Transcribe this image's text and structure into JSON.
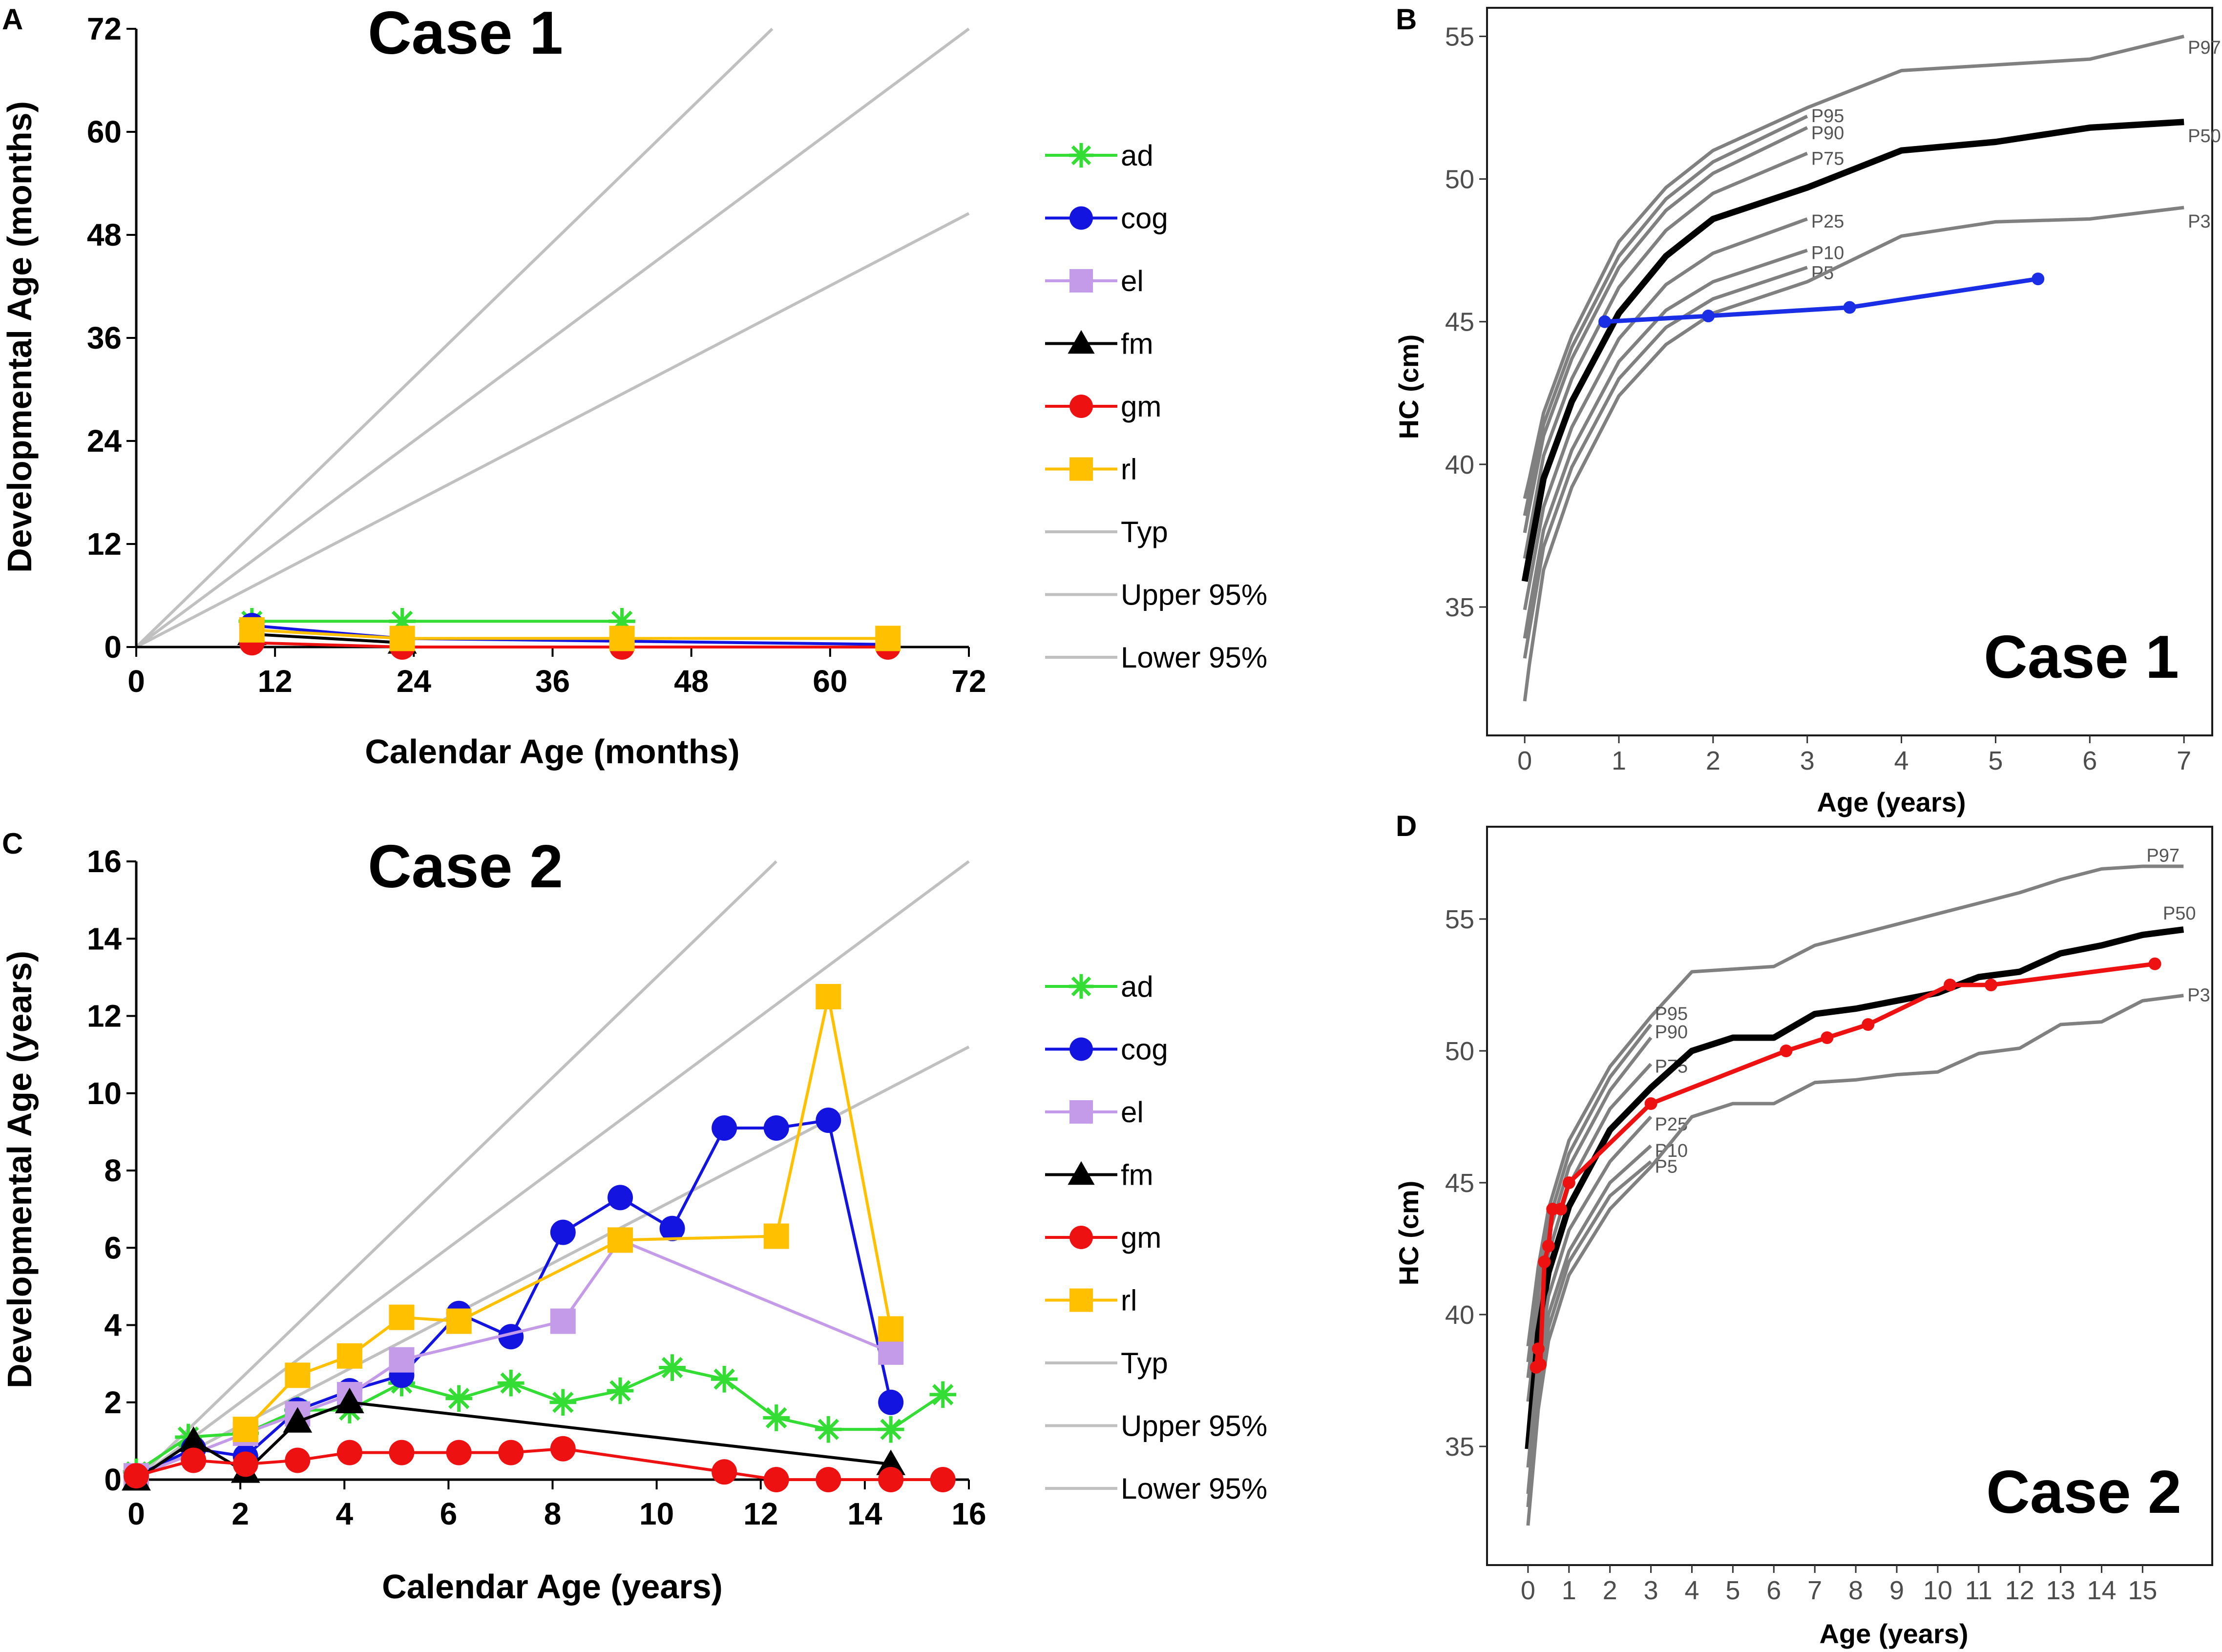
{
  "colors": {
    "ad": "#33dd33",
    "cog": "#1414e0",
    "el": "#c39be8",
    "fm": "#000000",
    "gm": "#ee1111",
    "rl": "#ffc000",
    "ref_line": "#c0c0c0",
    "pct_line": "#808080",
    "p50_line": "#000000",
    "hc_case1": "#1a2ee6",
    "hc_case2": "#ee1111"
  },
  "chart_data": [
    {
      "id": "A",
      "panel_letter": "A",
      "type": "line",
      "title": "Case 1",
      "xlabel": "Calendar Age (months)",
      "ylabel": "Developmental Age (months)",
      "xlim": [
        0,
        72
      ],
      "ylim": [
        0,
        72
      ],
      "xticks": [
        0,
        12,
        24,
        36,
        48,
        60,
        72
      ],
      "yticks": [
        0,
        12,
        24,
        36,
        48,
        60,
        72
      ],
      "reference_lines": [
        {
          "name": "Typ",
          "x": [
            0,
            72
          ],
          "y": [
            0,
            72
          ]
        },
        {
          "name": "Upper 95%",
          "x": [
            0,
            55
          ],
          "y": [
            0,
            72
          ]
        },
        {
          "name": "Lower 95%",
          "x": [
            0,
            72
          ],
          "y": [
            0,
            50.5
          ]
        }
      ],
      "series": [
        {
          "name": "ad",
          "marker": "star",
          "x": [
            10,
            23,
            42
          ],
          "y": [
            3,
            3,
            3
          ]
        },
        {
          "name": "cog",
          "marker": "circle",
          "x": [
            10,
            23,
            65
          ],
          "y": [
            2.5,
            1,
            0.3
          ]
        },
        {
          "name": "el",
          "marker": "square",
          "x": [],
          "y": []
        },
        {
          "name": "fm",
          "marker": "triangle",
          "x": [
            10,
            23
          ],
          "y": [
            1.5,
            0.5
          ]
        },
        {
          "name": "gm",
          "marker": "circle",
          "x": [
            10,
            23,
            42,
            65
          ],
          "y": [
            0.5,
            0,
            0,
            0
          ]
        },
        {
          "name": "rl",
          "marker": "square",
          "x": [
            10,
            23,
            42,
            65
          ],
          "y": [
            2,
            1,
            1,
            1
          ]
        }
      ],
      "legend": [
        "ad",
        "cog",
        "el",
        "fm",
        "gm",
        "rl",
        "Typ",
        "Upper 95%",
        "Lower 95%"
      ]
    },
    {
      "id": "B",
      "panel_letter": "B",
      "type": "line",
      "title": "Case 1",
      "xlabel": "Age (years)",
      "ylabel": "HC (cm)",
      "xlim": [
        -0.4,
        7.3
      ],
      "ylim": [
        30.5,
        56
      ],
      "xticks": [
        0,
        1,
        2,
        3,
        4,
        5,
        6,
        7
      ],
      "yticks": [
        35,
        40,
        45,
        50,
        55
      ],
      "percentile_curves": [
        {
          "label": "P97",
          "label_at": [
            7,
            54.6
          ],
          "x": [
            0,
            0.05,
            0.2,
            0.5,
            1,
            1.5,
            2,
            3,
            4,
            5,
            6,
            7
          ],
          "y": [
            38.8,
            39.5,
            41.8,
            44.5,
            47.8,
            49.7,
            51,
            52.5,
            53.8,
            54,
            54.2,
            55
          ]
        },
        {
          "label": "P95",
          "label_at": [
            3,
            52.2
          ],
          "x": [
            0,
            0.05,
            0.2,
            0.5,
            1,
            1.5,
            2,
            3
          ],
          "y": [
            38.2,
            39,
            41.4,
            44.1,
            47.3,
            49.3,
            50.6,
            52.2
          ]
        },
        {
          "label": "P90",
          "label_at": [
            3,
            51.6
          ],
          "x": [
            0,
            0.05,
            0.2,
            0.5,
            1,
            1.5,
            2,
            3
          ],
          "y": [
            37.6,
            38.5,
            41,
            43.7,
            46.9,
            48.9,
            50.2,
            51.8
          ]
        },
        {
          "label": "P75",
          "label_at": [
            3,
            50.7
          ],
          "x": [
            0,
            0.05,
            0.2,
            0.5,
            1,
            1.5,
            2,
            3
          ],
          "y": [
            36.7,
            37.6,
            40.3,
            43,
            46.2,
            48.2,
            49.5,
            50.9
          ]
        },
        {
          "label": "P50",
          "label_at": [
            7,
            51.5
          ],
          "x": [
            0,
            0.05,
            0.2,
            0.5,
            1,
            1.5,
            2,
            3,
            4,
            5,
            6,
            7
          ],
          "y": [
            35.9,
            36.8,
            39.5,
            42.2,
            45.3,
            47.3,
            48.6,
            49.7,
            51,
            51.3,
            51.8,
            52
          ]
        },
        {
          "label": "P25",
          "label_at": [
            3,
            48.5
          ],
          "x": [
            0,
            0.05,
            0.2,
            0.5,
            1,
            1.5,
            2,
            3
          ],
          "y": [
            34.9,
            35.8,
            38.5,
            41.3,
            44.4,
            46.3,
            47.4,
            48.6
          ]
        },
        {
          "label": "P10",
          "label_at": [
            3,
            47.4
          ],
          "x": [
            0,
            0.05,
            0.2,
            0.5,
            1,
            1.5,
            2,
            3
          ],
          "y": [
            33.9,
            34.9,
            37.7,
            40.5,
            43.6,
            45.4,
            46.4,
            47.5
          ]
        },
        {
          "label": "P5",
          "label_at": [
            3,
            46.7
          ],
          "x": [
            0,
            0.05,
            0.2,
            0.5,
            1,
            1.5,
            2,
            3
          ],
          "y": [
            33.2,
            34.2,
            37.1,
            39.9,
            43,
            44.8,
            45.8,
            46.9
          ]
        },
        {
          "label": "P3",
          "label_at": [
            7,
            48.5
          ],
          "x": [
            0,
            0.05,
            0.2,
            0.5,
            1,
            1.5,
            2,
            3,
            4,
            5,
            6,
            7
          ],
          "y": [
            31.7,
            33,
            36.3,
            39.2,
            42.4,
            44.2,
            45.3,
            46.4,
            48,
            48.5,
            48.6,
            49
          ]
        }
      ],
      "series": [
        {
          "name": "HC",
          "x": [
            0.85,
            1.95,
            3.45,
            5.45
          ],
          "y": [
            45,
            45.2,
            45.5,
            46.5
          ]
        }
      ]
    },
    {
      "id": "C",
      "panel_letter": "C",
      "type": "line",
      "title": "Case 2",
      "xlabel": "Calendar Age (years)",
      "ylabel": "Developmental Age (years)",
      "xlim": [
        0,
        16
      ],
      "ylim": [
        0,
        16
      ],
      "xticks": [
        0,
        2,
        4,
        6,
        8,
        10,
        12,
        14,
        16
      ],
      "yticks": [
        0,
        2,
        4,
        6,
        8,
        10,
        12,
        14,
        16
      ],
      "reference_lines": [
        {
          "name": "Typ",
          "x": [
            0,
            16
          ],
          "y": [
            0,
            16
          ]
        },
        {
          "name": "Upper 95%",
          "x": [
            0,
            12.3
          ],
          "y": [
            0,
            16
          ]
        },
        {
          "name": "Lower 95%",
          "x": [
            0,
            16
          ],
          "y": [
            0,
            11.2
          ]
        }
      ],
      "series": [
        {
          "name": "ad",
          "marker": "star",
          "x": [
            0,
            1,
            2.1,
            3.1,
            4.1,
            5.1,
            6.2,
            7.2,
            8.2,
            9.3,
            10.3,
            11.3,
            12.3,
            13.3,
            14.5,
            15.5
          ],
          "y": [
            0.2,
            1.1,
            1.2,
            1.8,
            1.8,
            2.5,
            2.1,
            2.5,
            2,
            2.3,
            2.9,
            2.6,
            1.6,
            1.3,
            1.3,
            2.2
          ]
        },
        {
          "name": "cog",
          "marker": "circle",
          "x": [
            0,
            1.1,
            2.1,
            3.1,
            4.1,
            5.1,
            6.2,
            7.2,
            8.2,
            9.3,
            10.3,
            11.3,
            12.3,
            13.3,
            14.5
          ],
          "y": [
            0.1,
            0.8,
            0.6,
            1.8,
            2.3,
            2.7,
            4.3,
            3.7,
            6.4,
            7.3,
            6.5,
            9.1,
            9.1,
            9.3,
            2
          ]
        },
        {
          "name": "el",
          "marker": "square",
          "x": [
            0,
            2.1,
            3.1,
            4.1,
            5.1,
            8.2,
            9.3,
            14.5
          ],
          "y": [
            0.1,
            1.2,
            1.7,
            2.2,
            3.1,
            4.1,
            6.2,
            3.3
          ]
        },
        {
          "name": "fm",
          "marker": "triangle",
          "x": [
            0,
            1.1,
            2.1,
            3.1,
            4.1,
            14.5
          ],
          "y": [
            0,
            1,
            0.2,
            1.5,
            2,
            0.4
          ]
        },
        {
          "name": "gm",
          "marker": "circle",
          "x": [
            0,
            1.1,
            2.1,
            3.1,
            4.1,
            5.1,
            6.2,
            7.2,
            8.2,
            11.3,
            12.3,
            13.3,
            14.5,
            15.5
          ],
          "y": [
            0.1,
            0.5,
            0.4,
            0.5,
            0.7,
            0.7,
            0.7,
            0.7,
            0.8,
            0.2,
            0,
            0,
            0,
            0
          ]
        },
        {
          "name": "rl",
          "marker": "square",
          "x": [
            2.1,
            3.1,
            4.1,
            5.1,
            6.2,
            9.3,
            12.3,
            13.3,
            14.5
          ],
          "y": [
            1.3,
            2.7,
            3.2,
            4.2,
            4.1,
            6.2,
            6.3,
            12.5,
            3.9
          ]
        }
      ],
      "legend": [
        "ad",
        "cog",
        "el",
        "fm",
        "gm",
        "rl",
        "Typ",
        "Upper 95%",
        "Lower 95%"
      ]
    },
    {
      "id": "D",
      "panel_letter": "D",
      "type": "line",
      "title": "Case 2",
      "xlabel": "Age (years)",
      "ylabel": "HC (cm)",
      "xlim": [
        -1,
        16.7
      ],
      "ylim": [
        30.5,
        58.5
      ],
      "xticks": [
        0,
        1,
        2,
        3,
        4,
        5,
        6,
        7,
        8,
        9,
        10,
        11,
        12,
        13,
        14,
        15
      ],
      "yticks": [
        35,
        40,
        45,
        50,
        55
      ],
      "percentile_curves": [
        {
          "label": "P97",
          "label_at": [
            15,
            57.4
          ],
          "x": [
            0,
            0.25,
            0.5,
            1,
            2,
            3,
            4,
            5,
            6,
            7,
            8,
            9,
            10,
            11,
            12,
            13,
            14,
            15,
            16
          ],
          "y": [
            38.8,
            41.8,
            44,
            46.6,
            49.4,
            51.3,
            53,
            53.1,
            53.2,
            54,
            54.4,
            54.8,
            55.2,
            55.6,
            56,
            56.5,
            56.9,
            57,
            57
          ]
        },
        {
          "label": "P95",
          "label_at": [
            3,
            51.4
          ],
          "x": [
            0,
            0.25,
            0.5,
            1,
            2,
            3
          ],
          "y": [
            38.2,
            41.3,
            43.5,
            46.1,
            49,
            51
          ]
        },
        {
          "label": "P90",
          "label_at": [
            3,
            50.7
          ],
          "x": [
            0,
            0.25,
            0.5,
            1,
            2,
            3
          ],
          "y": [
            37.6,
            40.8,
            43,
            45.6,
            48.5,
            50.5
          ]
        },
        {
          "label": "P75",
          "label_at": [
            3,
            49.4
          ],
          "x": [
            0,
            0.25,
            0.5,
            1,
            2,
            3
          ],
          "y": [
            36.7,
            40,
            42.3,
            44.9,
            47.8,
            49.5
          ]
        },
        {
          "label": "P50",
          "label_at": [
            15.4,
            55.2
          ],
          "x": [
            0,
            0.25,
            0.5,
            1,
            2,
            3,
            4,
            5,
            6,
            7,
            8,
            9,
            10,
            11,
            12,
            13,
            14,
            15,
            16
          ],
          "y": [
            34.9,
            39.3,
            41.6,
            44.1,
            47,
            48.6,
            50,
            50.5,
            50.5,
            51.4,
            51.6,
            51.9,
            52.2,
            52.8,
            53,
            53.7,
            54,
            54.4,
            54.6
          ]
        },
        {
          "label": "P25",
          "label_at": [
            3,
            47.2
          ],
          "x": [
            0,
            0.25,
            0.5,
            1,
            2,
            3
          ],
          "y": [
            34.2,
            38.3,
            40.7,
            43.2,
            45.8,
            47.5
          ]
        },
        {
          "label": "P10",
          "label_at": [
            3,
            46.2
          ],
          "x": [
            0,
            0.25,
            0.5,
            1,
            2,
            3
          ],
          "y": [
            33.2,
            37.5,
            40,
            42.4,
            45,
            46.4
          ]
        },
        {
          "label": "P5",
          "label_at": [
            3,
            45.6
          ],
          "x": [
            0,
            0.25,
            0.5,
            1,
            2,
            3
          ],
          "y": [
            32.7,
            37,
            39.5,
            42,
            44.5,
            45.8
          ]
        },
        {
          "label": "P3",
          "label_at": [
            16,
            52.1
          ],
          "x": [
            0,
            0.25,
            0.5,
            1,
            2,
            3,
            4,
            5,
            6,
            7,
            8,
            9,
            10,
            11,
            12,
            13,
            14,
            15,
            16
          ],
          "y": [
            32,
            36.4,
            39,
            41.5,
            44,
            45.6,
            47.5,
            48,
            48,
            48.8,
            48.9,
            49.1,
            49.2,
            49.9,
            50.1,
            51,
            51.1,
            51.9,
            52.1
          ]
        }
      ],
      "series": [
        {
          "name": "HC",
          "x": [
            0.2,
            0.25,
            0.3,
            0.4,
            0.5,
            0.6,
            0.8,
            1,
            3,
            6.3,
            7.3,
            8.3,
            10.3,
            11.3,
            15.3
          ],
          "y": [
            38,
            38.7,
            38.1,
            42,
            42.6,
            44,
            44,
            45,
            48,
            50,
            50.5,
            51,
            52.5,
            52.5,
            53.3
          ]
        }
      ]
    }
  ]
}
